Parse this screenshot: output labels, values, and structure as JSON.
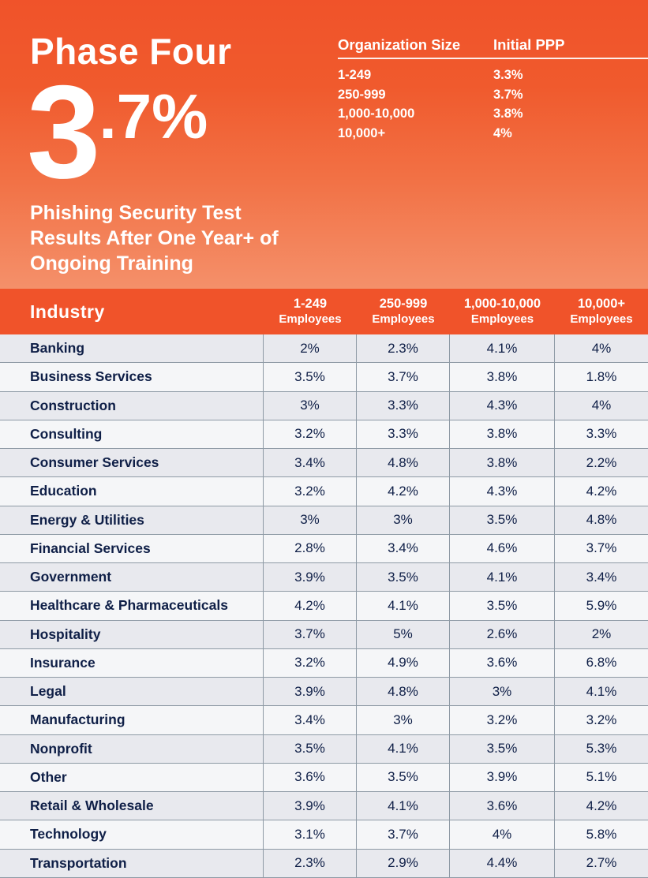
{
  "hero": {
    "title": "Phase Four",
    "stat_main": "3",
    "stat_decimal": ".7%",
    "subtitle": "Phishing Security Test Results After One Year+ of Ongoing Training"
  },
  "ppp_table": {
    "headers": [
      "Organization Size",
      "Initial PPP"
    ],
    "rows": [
      [
        "1-249",
        "3.3%"
      ],
      [
        "250-999",
        "3.7%"
      ],
      [
        "1,000-10,000",
        "3.8%"
      ],
      [
        "10,000+",
        "4%"
      ]
    ]
  },
  "industry_table": {
    "header_industry": "Industry",
    "columns": [
      {
        "size": "1-249",
        "unit": "Employees"
      },
      {
        "size": "250-999",
        "unit": "Employees"
      },
      {
        "size": "1,000-10,000",
        "unit": "Employees"
      },
      {
        "size": "10,000+",
        "unit": "Employees"
      }
    ],
    "rows": [
      {
        "industry": "Banking",
        "values": [
          "2%",
          "2.3%",
          "4.1%",
          "4%"
        ]
      },
      {
        "industry": "Business Services",
        "values": [
          "3.5%",
          "3.7%",
          "3.8%",
          "1.8%"
        ]
      },
      {
        "industry": "Construction",
        "values": [
          "3%",
          "3.3%",
          "4.3%",
          "4%"
        ]
      },
      {
        "industry": "Consulting",
        "values": [
          "3.2%",
          "3.3%",
          "3.8%",
          "3.3%"
        ]
      },
      {
        "industry": "Consumer Services",
        "values": [
          "3.4%",
          "4.8%",
          "3.8%",
          "2.2%"
        ]
      },
      {
        "industry": "Education",
        "values": [
          "3.2%",
          "4.2%",
          "4.3%",
          "4.2%"
        ]
      },
      {
        "industry": "Energy & Utilities",
        "values": [
          "3%",
          "3%",
          "3.5%",
          "4.8%"
        ]
      },
      {
        "industry": "Financial Services",
        "values": [
          "2.8%",
          "3.4%",
          "4.6%",
          "3.7%"
        ]
      },
      {
        "industry": "Government",
        "values": [
          "3.9%",
          "3.5%",
          "4.1%",
          "3.4%"
        ]
      },
      {
        "industry": "Healthcare & Pharmaceuticals",
        "values": [
          "4.2%",
          "4.1%",
          "3.5%",
          "5.9%"
        ]
      },
      {
        "industry": "Hospitality",
        "values": [
          "3.7%",
          "5%",
          "2.6%",
          "2%"
        ]
      },
      {
        "industry": "Insurance",
        "values": [
          "3.2%",
          "4.9%",
          "3.6%",
          "6.8%"
        ]
      },
      {
        "industry": "Legal",
        "values": [
          "3.9%",
          "4.8%",
          "3%",
          "4.1%"
        ]
      },
      {
        "industry": "Manufacturing",
        "values": [
          "3.4%",
          "3%",
          "3.2%",
          "3.2%"
        ]
      },
      {
        "industry": "Nonprofit",
        "values": [
          "3.5%",
          "4.1%",
          "3.5%",
          "5.3%"
        ]
      },
      {
        "industry": "Other",
        "values": [
          "3.6%",
          "3.5%",
          "3.9%",
          "5.1%"
        ]
      },
      {
        "industry": "Retail & Wholesale",
        "values": [
          "3.9%",
          "4.1%",
          "3.6%",
          "4.2%"
        ]
      },
      {
        "industry": "Technology",
        "values": [
          "3.1%",
          "3.7%",
          "4%",
          "5.8%"
        ]
      },
      {
        "industry": "Transportation",
        "values": [
          "2.3%",
          "2.9%",
          "4.4%",
          "2.7%"
        ]
      }
    ]
  },
  "colors": {
    "brand_orange": "#f0532a",
    "text_navy": "#0f1f47"
  }
}
